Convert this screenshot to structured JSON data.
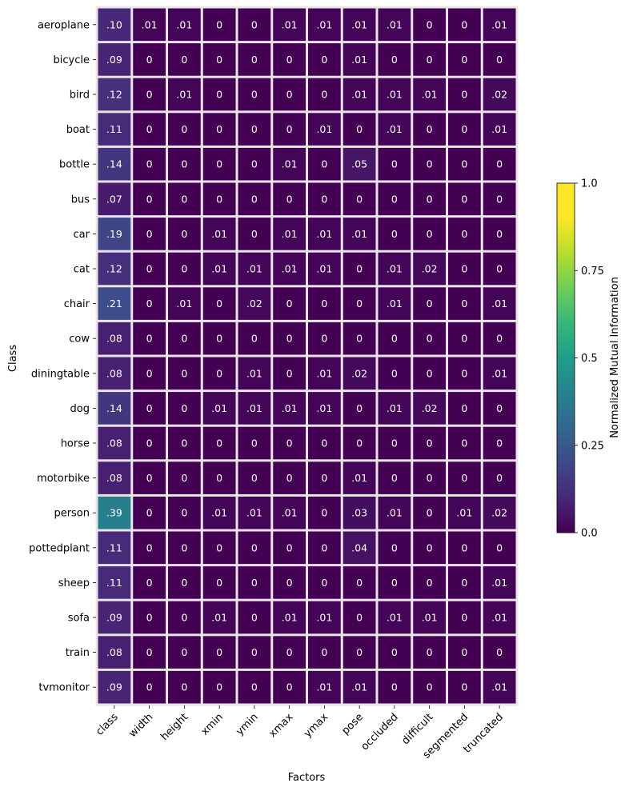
{
  "chart_data": {
    "type": "heatmap",
    "xlabel": "Factors",
    "ylabel": "Class",
    "x_categories": [
      "class",
      "width",
      "height",
      "xmin",
      "ymin",
      "xmax",
      "ymax",
      "pose",
      "occluded",
      "difficult",
      "segmented",
      "truncated"
    ],
    "y_categories": [
      "aeroplane",
      "bicycle",
      "bird",
      "boat",
      "bottle",
      "bus",
      "car",
      "cat",
      "chair",
      "cow",
      "diningtable",
      "dog",
      "horse",
      "motorbike",
      "person",
      "pottedplant",
      "sheep",
      "sofa",
      "train",
      "tvmonitor"
    ],
    "values": [
      [
        0.1,
        0.01,
        0.01,
        0,
        0,
        0.01,
        0.01,
        0.01,
        0.01,
        0,
        0,
        0.01
      ],
      [
        0.09,
        0,
        0,
        0,
        0,
        0,
        0,
        0.01,
        0,
        0,
        0,
        0
      ],
      [
        0.12,
        0,
        0.01,
        0,
        0,
        0,
        0,
        0.01,
        0.01,
        0.01,
        0,
        0.02
      ],
      [
        0.11,
        0,
        0,
        0,
        0,
        0,
        0.01,
        0,
        0.01,
        0,
        0,
        0.01
      ],
      [
        0.14,
        0,
        0,
        0,
        0,
        0.01,
        0,
        0.05,
        0,
        0,
        0,
        0
      ],
      [
        0.07,
        0,
        0,
        0,
        0,
        0,
        0,
        0,
        0,
        0,
        0,
        0
      ],
      [
        0.19,
        0,
        0,
        0.01,
        0,
        0.01,
        0.01,
        0.01,
        0,
        0,
        0,
        0
      ],
      [
        0.12,
        0,
        0,
        0.01,
        0.01,
        0.01,
        0.01,
        0,
        0.01,
        0.02,
        0,
        0
      ],
      [
        0.21,
        0,
        0.01,
        0,
        0.02,
        0,
        0,
        0,
        0.01,
        0,
        0,
        0.01
      ],
      [
        0.08,
        0,
        0,
        0,
        0,
        0,
        0,
        0,
        0,
        0,
        0,
        0
      ],
      [
        0.08,
        0,
        0,
        0,
        0.01,
        0,
        0.01,
        0.02,
        0,
        0,
        0,
        0.01
      ],
      [
        0.14,
        0,
        0,
        0.01,
        0.01,
        0.01,
        0.01,
        0,
        0.01,
        0.02,
        0,
        0
      ],
      [
        0.08,
        0,
        0,
        0,
        0,
        0,
        0,
        0,
        0,
        0,
        0,
        0
      ],
      [
        0.08,
        0,
        0,
        0,
        0,
        0,
        0,
        0.01,
        0,
        0,
        0,
        0
      ],
      [
        0.39,
        0,
        0,
        0.01,
        0.01,
        0.01,
        0,
        0.03,
        0.01,
        0,
        0.01,
        0.02
      ],
      [
        0.11,
        0,
        0,
        0,
        0,
        0,
        0,
        0.04,
        0,
        0,
        0,
        0
      ],
      [
        0.11,
        0,
        0,
        0,
        0,
        0,
        0,
        0,
        0,
        0,
        0,
        0.01
      ],
      [
        0.09,
        0,
        0,
        0.01,
        0,
        0.01,
        0.01,
        0,
        0.01,
        0.01,
        0,
        0.01
      ],
      [
        0.08,
        0,
        0,
        0,
        0,
        0,
        0,
        0,
        0,
        0,
        0,
        0
      ],
      [
        0.09,
        0,
        0,
        0,
        0,
        0,
        0.01,
        0.01,
        0,
        0,
        0,
        0.01
      ]
    ],
    "cell_labels": [
      [
        ".10",
        ".01",
        ".01",
        "0",
        "0",
        ".01",
        ".01",
        ".01",
        ".01",
        "0",
        "0",
        ".01"
      ],
      [
        ".09",
        "0",
        "0",
        "0",
        "0",
        "0",
        "0",
        ".01",
        "0",
        "0",
        "0",
        "0"
      ],
      [
        ".12",
        "0",
        ".01",
        "0",
        "0",
        "0",
        "0",
        ".01",
        ".01",
        ".01",
        "0",
        ".02"
      ],
      [
        ".11",
        "0",
        "0",
        "0",
        "0",
        "0",
        ".01",
        "0",
        ".01",
        "0",
        "0",
        ".01"
      ],
      [
        ".14",
        "0",
        "0",
        "0",
        "0",
        ".01",
        "0",
        ".05",
        "0",
        "0",
        "0",
        "0"
      ],
      [
        ".07",
        "0",
        "0",
        "0",
        "0",
        "0",
        "0",
        "0",
        "0",
        "0",
        "0",
        "0"
      ],
      [
        ".19",
        "0",
        "0",
        ".01",
        "0",
        ".01",
        ".01",
        ".01",
        "0",
        "0",
        "0",
        "0"
      ],
      [
        ".12",
        "0",
        "0",
        ".01",
        ".01",
        ".01",
        ".01",
        "0",
        ".01",
        ".02",
        "0",
        "0"
      ],
      [
        ".21",
        "0",
        ".01",
        "0",
        ".02",
        "0",
        "0",
        "0",
        ".01",
        "0",
        "0",
        ".01"
      ],
      [
        ".08",
        "0",
        "0",
        "0",
        "0",
        "0",
        "0",
        "0",
        "0",
        "0",
        "0",
        "0"
      ],
      [
        ".08",
        "0",
        "0",
        "0",
        ".01",
        "0",
        ".01",
        ".02",
        "0",
        "0",
        "0",
        ".01"
      ],
      [
        ".14",
        "0",
        "0",
        ".01",
        ".01",
        ".01",
        ".01",
        "0",
        ".01",
        ".02",
        "0",
        "0"
      ],
      [
        ".08",
        "0",
        "0",
        "0",
        "0",
        "0",
        "0",
        "0",
        "0",
        "0",
        "0",
        "0"
      ],
      [
        ".08",
        "0",
        "0",
        "0",
        "0",
        "0",
        "0",
        ".01",
        "0",
        "0",
        "0",
        "0"
      ],
      [
        ".39",
        "0",
        "0",
        ".01",
        ".01",
        ".01",
        "0",
        ".03",
        ".01",
        "0",
        ".01",
        ".02"
      ],
      [
        ".11",
        "0",
        "0",
        "0",
        "0",
        "0",
        "0",
        ".04",
        "0",
        "0",
        "0",
        "0"
      ],
      [
        ".11",
        "0",
        "0",
        "0",
        "0",
        "0",
        "0",
        "0",
        "0",
        "0",
        "0",
        ".01"
      ],
      [
        ".09",
        "0",
        "0",
        ".01",
        "0",
        ".01",
        ".01",
        "0",
        ".01",
        ".01",
        "0",
        ".01"
      ],
      [
        ".08",
        "0",
        "0",
        "0",
        "0",
        "0",
        "0",
        "0",
        "0",
        "0",
        "0",
        "0"
      ],
      [
        ".09",
        "0",
        "0",
        "0",
        "0",
        "0",
        ".01",
        ".01",
        "0",
        "0",
        "0",
        ".01"
      ]
    ],
    "colormap": "viridis",
    "value_range": [
      0,
      1
    ],
    "grid_line_color": "#e8e4e8",
    "colorbar": {
      "label": "Normalized Mutual Information",
      "ticks": [
        0.0,
        0.25,
        0.5,
        0.75,
        1.0
      ],
      "tick_labels": [
        "0.0",
        "0.25",
        "0.5",
        "0.75",
        "1.0"
      ],
      "placement": "right"
    }
  }
}
